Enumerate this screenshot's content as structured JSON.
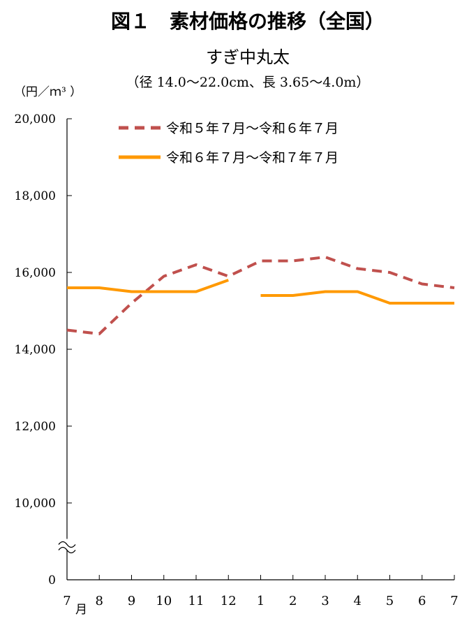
{
  "chart_data": {
    "type": "line",
    "title": "図１　素材価格の推移（全国）",
    "subtitle": "すぎ中丸太",
    "subtitle2": "（径 14.0～22.0cm、長 3.65～4.0m）",
    "ylabel": "（円／ｍ³ ）",
    "x_unit": "月",
    "categories": [
      "7",
      "8",
      "9",
      "10",
      "11",
      "12",
      "1",
      "2",
      "3",
      "4",
      "5",
      "6",
      "7"
    ],
    "y_ticks": [
      "20,000",
      "18,000",
      "16,000",
      "14,000",
      "12,000",
      "10,000",
      "0"
    ],
    "y_tick_values": [
      20000,
      18000,
      16000,
      14000,
      12000,
      10000,
      8000
    ],
    "ylim": [
      8000,
      20000
    ],
    "axis_break": true,
    "series": [
      {
        "name": "令和５年７月～令和６年７月",
        "style": "dashed",
        "color": "#c0504d",
        "values": [
          14500,
          14400,
          15200,
          15900,
          16200,
          15900,
          16300,
          16300,
          16400,
          16100,
          16000,
          15700,
          15600
        ]
      },
      {
        "name": "令和６年７月～令和７年７月",
        "style": "solid",
        "color": "#ff9900",
        "values": [
          15600,
          15600,
          15500,
          15500,
          15500,
          15800,
          15400,
          15400,
          15500,
          15500,
          15200,
          15200,
          15200
        ],
        "gap_after_index": 5
      }
    ]
  }
}
